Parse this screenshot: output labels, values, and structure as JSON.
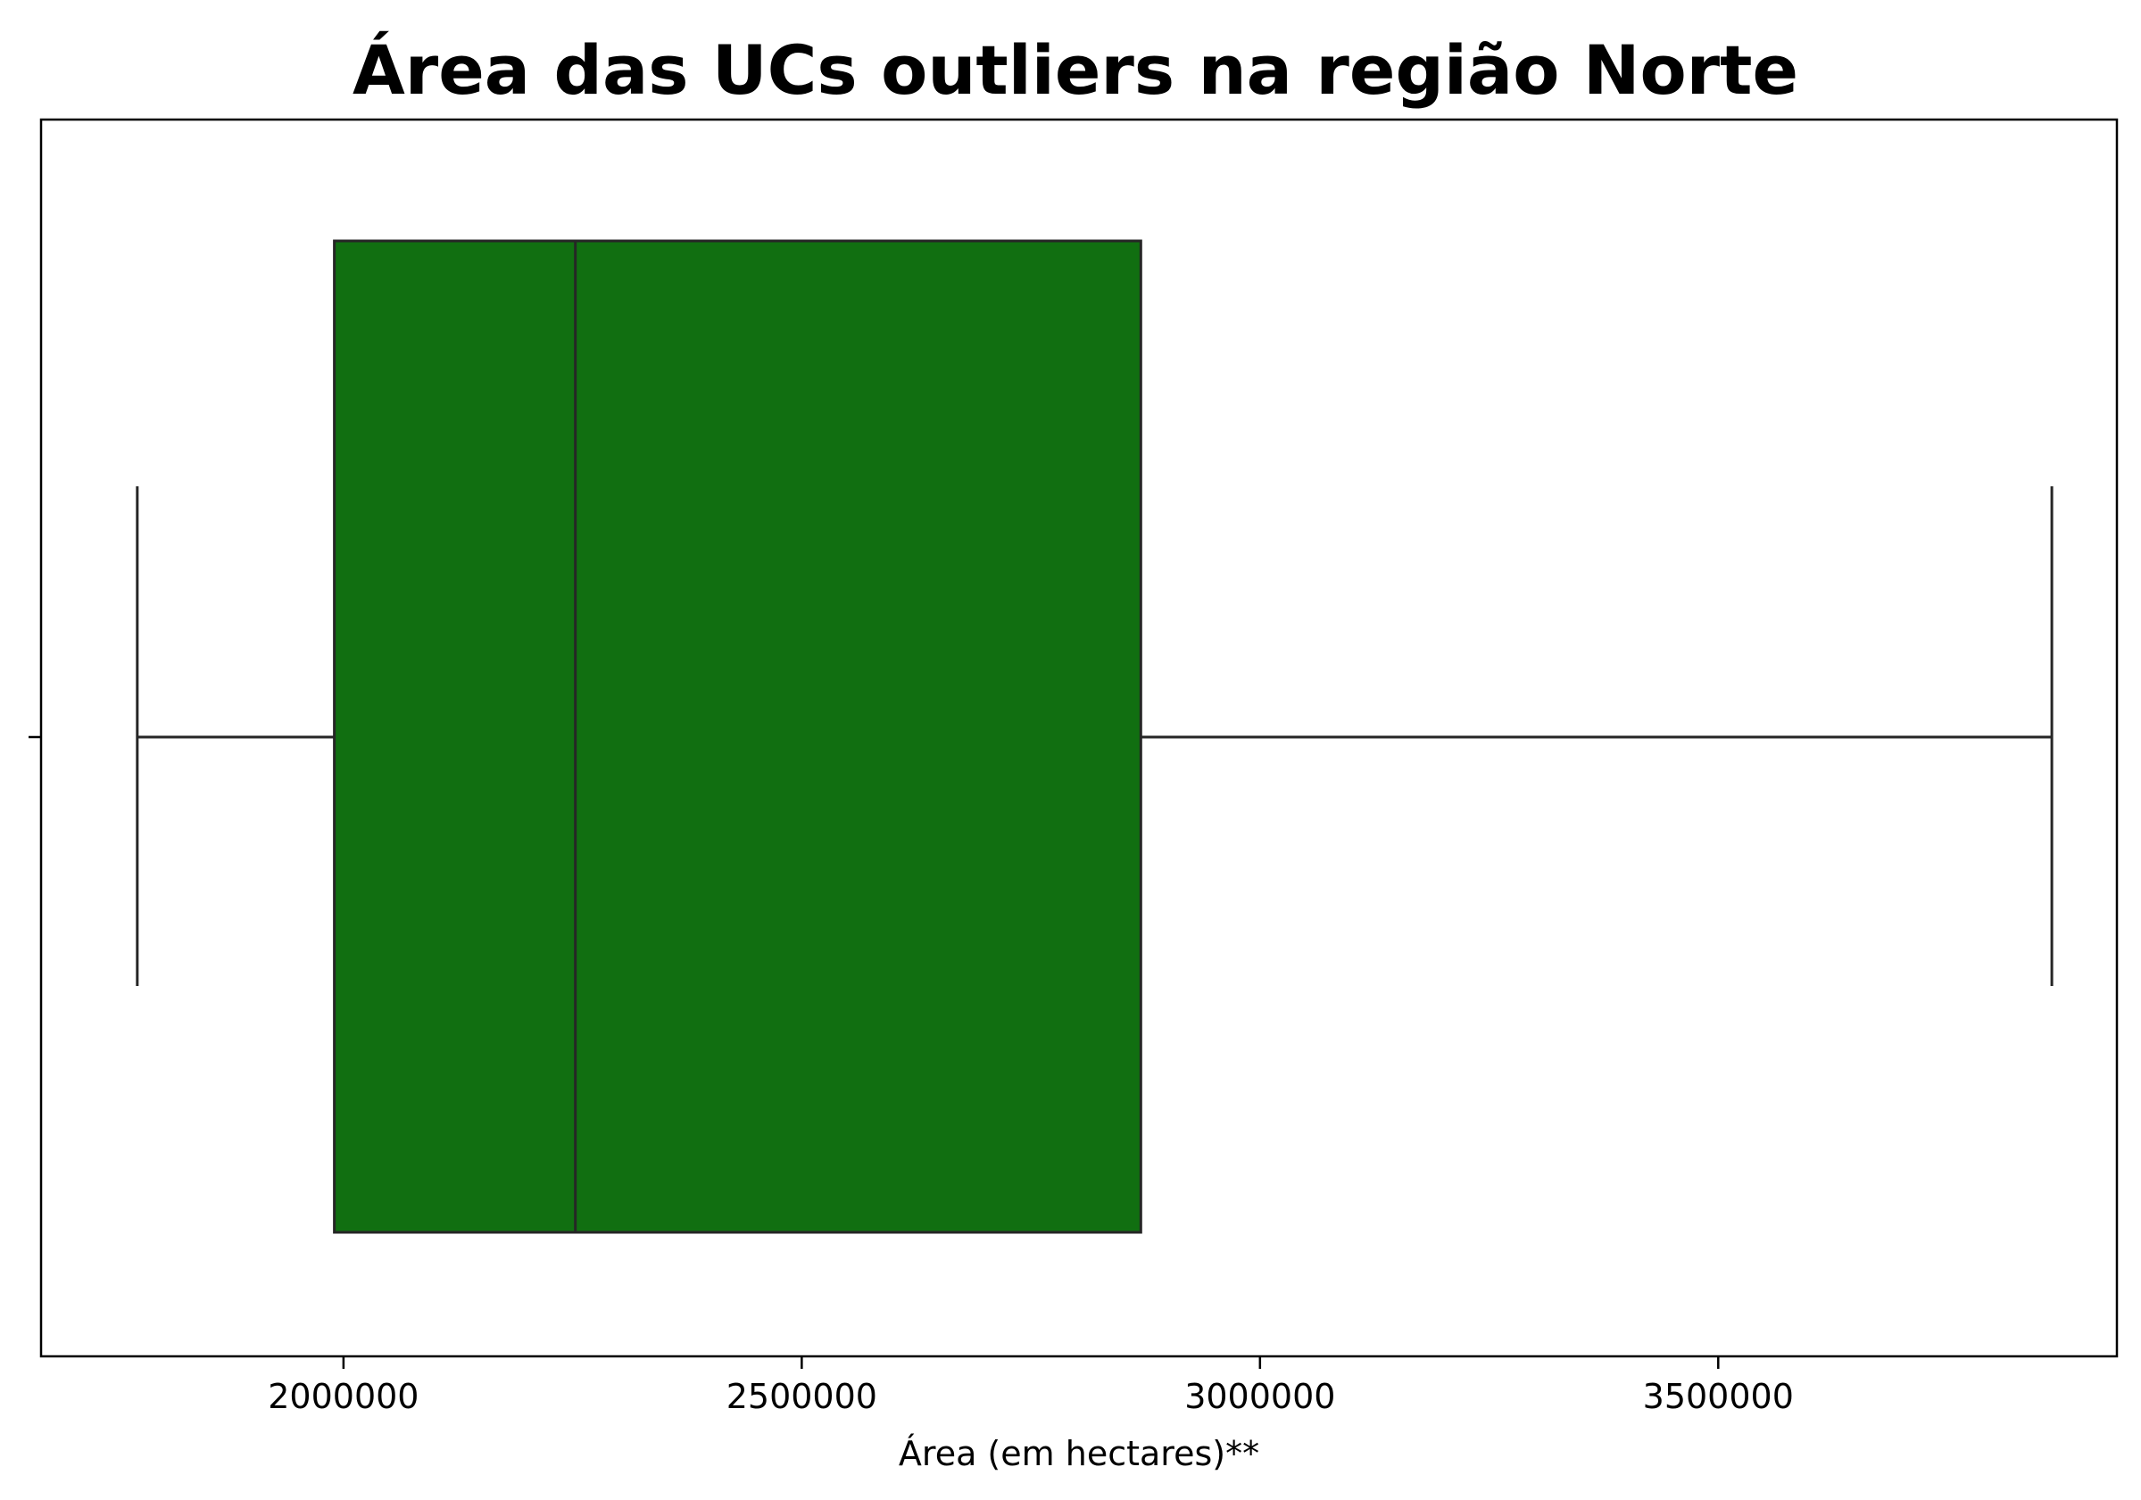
{
  "chart_data": {
    "type": "box",
    "orientation": "horizontal",
    "title": "Área das UCs outliers na região Norte",
    "xlabel": "Área (em hectares)**",
    "ylabel": "",
    "xlim": [
      1670000,
      3935000
    ],
    "xticks": [
      2000000,
      2500000,
      3000000,
      3500000
    ],
    "xtick_labels": [
      "2000000",
      "2500000",
      "3000000",
      "3500000"
    ],
    "box": {
      "whisker_low": 1775000,
      "q1": 1990000,
      "median": 2253000,
      "q3": 2870000,
      "whisker_high": 3864000
    },
    "colors": {
      "box_fill": "#116F11",
      "line": "#262626",
      "axes": "#000000"
    },
    "grid": false,
    "legend": "none"
  }
}
